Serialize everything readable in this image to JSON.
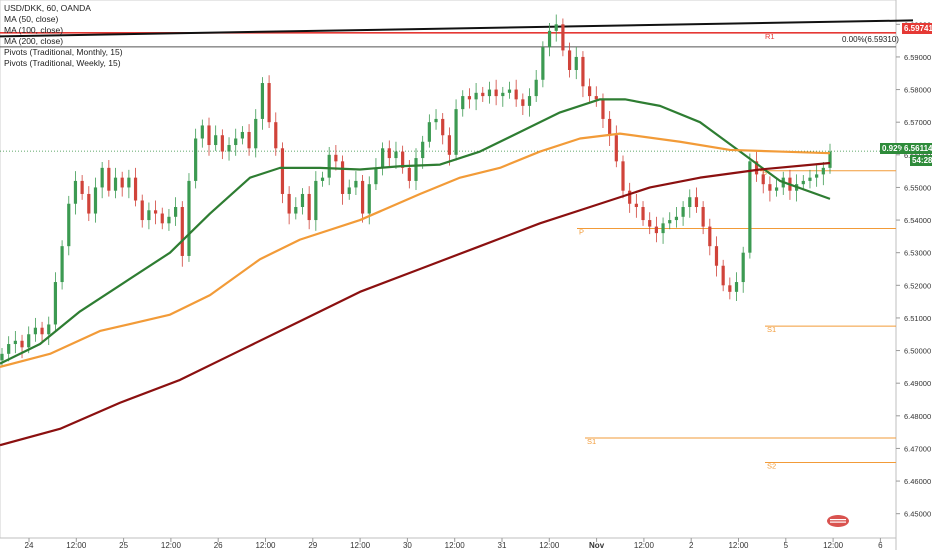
{
  "chart_data": {
    "type": "line",
    "symbol_line": "USD/DKK, 60, OANDA",
    "legend": [
      "MA (50, close)",
      "MA (100, close)",
      "MA (200, close)",
      "Pivots (Traditional, Monthly, 15)",
      "Pivots (Traditional, Weekly, 15)"
    ],
    "ylim": [
      6.445,
      6.605
    ],
    "y_ticks": [
      "6.60000",
      "6.59000",
      "6.58000",
      "6.57000",
      "6.56000",
      "6.55000",
      "6.54000",
      "6.53000",
      "6.52000",
      "6.51000",
      "6.50000",
      "6.49000",
      "6.48000",
      "6.47000",
      "6.46000",
      "6.45000"
    ],
    "y_tick_values": [
      6.6,
      6.59,
      6.58,
      6.57,
      6.56,
      6.55,
      6.54,
      6.53,
      6.52,
      6.51,
      6.5,
      6.49,
      6.48,
      6.47,
      6.46,
      6.45
    ],
    "x_ticks": [
      "24",
      "12:00",
      "25",
      "12:00",
      "26",
      "12:00",
      "29",
      "12:00",
      "30",
      "12:00",
      "31",
      "12:00",
      "Nov",
      "12:00",
      "2",
      "12:00",
      "5",
      "12:00",
      "6"
    ],
    "price_label": "6.56114",
    "change_label": "0.92%",
    "countdown_label": "54:28",
    "fib_label": "0.00%(6.59310)",
    "r1_value_label": "6.59741",
    "pivots": [
      {
        "label": "R1",
        "value": 6.5974,
        "color": "#e53935"
      },
      {
        "label": "P",
        "value": 6.5374,
        "color": "#f29b38"
      },
      {
        "label": "S1",
        "value": 6.4732,
        "color": "#f29b38"
      },
      {
        "label": "S2",
        "value": 6.4657,
        "color": "#f29b38"
      },
      {
        "label": "P",
        "value": 6.5551,
        "color": "#f29b38"
      },
      {
        "label": "S1",
        "value": 6.5075,
        "color": "#f29b38"
      }
    ],
    "fib_level": 6.5931,
    "current_price": 6.56114,
    "trendline": [
      [
        0,
        6.5963
      ],
      [
        913,
        6.6012
      ]
    ],
    "series": [
      {
        "name": "MA (50, close)",
        "color": "#2e7d32",
        "values": [
          [
            0,
            6.496
          ],
          [
            40,
            6.502
          ],
          [
            80,
            6.512
          ],
          [
            120,
            6.52
          ],
          [
            170,
            6.53
          ],
          [
            210,
            6.542
          ],
          [
            250,
            6.553
          ],
          [
            280,
            6.556
          ],
          [
            320,
            6.556
          ],
          [
            360,
            6.5555
          ],
          [
            400,
            6.5565
          ],
          [
            440,
            6.557
          ],
          [
            480,
            6.561
          ],
          [
            520,
            6.567
          ],
          [
            560,
            6.573
          ],
          [
            600,
            6.577
          ],
          [
            625,
            6.577
          ],
          [
            660,
            6.575
          ],
          [
            700,
            6.57
          ],
          [
            740,
            6.561
          ],
          [
            780,
            6.552
          ],
          [
            830,
            6.5465
          ]
        ]
      },
      {
        "name": "MA (100, close)",
        "color": "#f29b38",
        "values": [
          [
            0,
            6.495
          ],
          [
            50,
            6.499
          ],
          [
            100,
            6.506
          ],
          [
            170,
            6.511
          ],
          [
            210,
            6.517
          ],
          [
            260,
            6.528
          ],
          [
            300,
            6.534
          ],
          [
            360,
            6.54
          ],
          [
            420,
            6.548
          ],
          [
            460,
            6.553
          ],
          [
            500,
            6.556
          ],
          [
            540,
            6.561
          ],
          [
            580,
            6.565
          ],
          [
            620,
            6.5665
          ],
          [
            680,
            6.564
          ],
          [
            730,
            6.5615
          ],
          [
            780,
            6.561
          ],
          [
            830,
            6.5605
          ]
        ]
      },
      {
        "name": "MA (200, close)",
        "color": "#8b1010",
        "values": [
          [
            0,
            6.471
          ],
          [
            60,
            6.476
          ],
          [
            120,
            6.484
          ],
          [
            180,
            6.491
          ],
          [
            240,
            6.5
          ],
          [
            300,
            6.509
          ],
          [
            360,
            6.518
          ],
          [
            420,
            6.525
          ],
          [
            480,
            6.532
          ],
          [
            540,
            6.539
          ],
          [
            600,
            6.545
          ],
          [
            650,
            6.55
          ],
          [
            700,
            6.553
          ],
          [
            760,
            6.5555
          ],
          [
            830,
            6.5575
          ]
        ]
      }
    ],
    "candles": [
      6.499,
      6.502,
      6.503,
      6.501,
      6.505,
      6.507,
      6.505,
      6.508,
      6.521,
      6.532,
      6.545,
      6.552,
      6.548,
      6.542,
      6.55,
      6.556,
      6.549,
      6.553,
      6.55,
      6.553,
      6.546,
      6.54,
      6.543,
      6.542,
      6.539,
      6.541,
      6.544,
      6.529,
      6.552,
      6.565,
      6.569,
      6.563,
      6.566,
      6.561,
      6.563,
      6.565,
      6.567,
      6.562,
      6.571,
      6.582,
      6.57,
      6.562,
      6.548,
      6.542,
      6.544,
      6.548,
      6.54,
      6.552,
      6.553,
      6.56,
      6.558,
      6.548,
      6.55,
      6.552,
      6.542,
      6.551,
      6.556,
      6.562,
      6.559,
      6.561,
      6.556,
      6.552,
      6.559,
      6.564,
      6.57,
      6.571,
      6.566,
      6.56,
      6.574,
      6.578,
      6.577,
      6.579,
      6.578,
      6.58,
      6.578,
      6.579,
      6.58,
      6.577,
      6.575,
      6.578,
      6.583,
      6.593,
      6.598,
      6.6,
      6.592,
      6.586,
      6.59,
      6.581,
      6.578,
      6.577,
      6.571,
      6.566,
      6.558,
      6.549,
      6.545,
      6.544,
      6.54,
      6.538,
      6.536,
      6.539,
      6.54,
      6.541,
      6.544,
      6.547,
      6.544,
      6.538,
      6.532,
      6.526,
      6.52,
      6.518,
      6.521,
      6.53,
      6.558,
      6.554,
      6.551,
      6.549,
      6.55,
      6.553,
      6.549,
      6.551,
      6.552,
      6.553,
      6.554,
      6.556,
      6.561
    ]
  },
  "logo_text": "2 63"
}
